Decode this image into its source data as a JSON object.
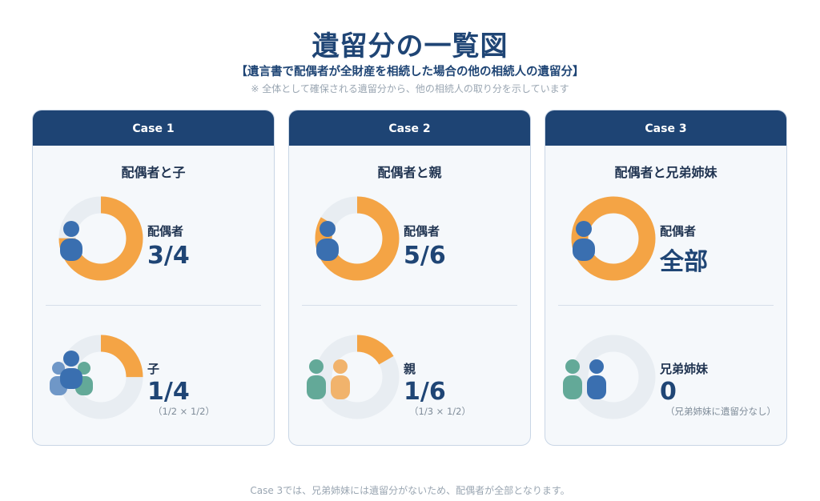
{
  "title": "遺留分の一覧図",
  "subtitle": "【遺言書で配偶者が全財産を相続した場合の他の相続人の遺留分】",
  "note": "※ 全体として確保される遺留分から、他の相続人の取り分を示しています",
  "footer": "Case 3では、兄弟姉妹には遺留分がないため、配偶者が全部となります。",
  "colors": {
    "navy": "#1e4474",
    "orange": "#f4a445",
    "ring_bg": "#e8edf2",
    "person_blue": "#3a6fb0",
    "person_light_blue": "#6f97c7",
    "person_green": "#63a998",
    "person_peach": "#f1b36c"
  },
  "cases": [
    {
      "header": "Case 1",
      "title": "配偶者と子",
      "spouse_label": "配偶者",
      "spouse_value": "3/4",
      "spouse_fraction": 0.75,
      "other_label": "子",
      "other_value": "1/4",
      "other_fraction": 0.25,
      "other_calc": "（1/2 × 1/2）",
      "other_icons": [
        "person-light-blue",
        "person-green",
        "person-blue"
      ]
    },
    {
      "header": "Case 2",
      "title": "配偶者と親",
      "spouse_label": "配偶者",
      "spouse_value": "5/6",
      "spouse_fraction": 0.8333,
      "other_label": "親",
      "other_value": "1/6",
      "other_fraction": 0.1667,
      "other_calc": "（1/3 × 1/2）",
      "other_icons": [
        "person-green",
        "person-peach"
      ]
    },
    {
      "header": "Case 3",
      "title": "配偶者と兄弟姉妹",
      "spouse_label": "配偶者",
      "spouse_value": "全部",
      "spouse_fraction": 1,
      "other_label": "兄弟姉妹",
      "other_value": "0",
      "other_fraction": 0,
      "other_calc": "（兄弟姉妹に遺留分なし）",
      "other_icons": [
        "person-green",
        "person-blue"
      ]
    }
  ]
}
